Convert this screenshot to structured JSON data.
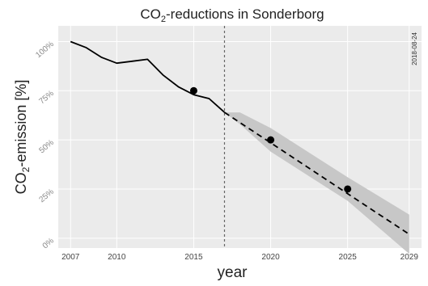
{
  "chart_data": {
    "type": "line",
    "title_prefix": "CO",
    "title_subscript": "2",
    "title_suffix": "-reductions in Sonderborg",
    "xlabel": "year",
    "ylabel_prefix": "CO",
    "ylabel_subscript": "2",
    "ylabel_suffix": "-emission [%]",
    "date_label": "2018-08-24",
    "xlim": [
      2006.2,
      2029.8
    ],
    "ylim": [
      -5,
      108
    ],
    "x_ticks": [
      {
        "value": 2007,
        "label": "2007"
      },
      {
        "value": 2010,
        "label": "2010"
      },
      {
        "value": 2015,
        "label": "2015"
      },
      {
        "value": 2020,
        "label": "2020"
      },
      {
        "value": 2025,
        "label": "2025"
      },
      {
        "value": 2029,
        "label": "2029"
      }
    ],
    "y_ticks": [
      {
        "value": 0,
        "label": "0%"
      },
      {
        "value": 25,
        "label": "25%"
      },
      {
        "value": 50,
        "label": "50%"
      },
      {
        "value": 75,
        "label": "75%"
      },
      {
        "value": 100,
        "label": "100%"
      }
    ],
    "grid": true,
    "vertical_line_x": 2017,
    "historical": {
      "x": [
        2007,
        2008,
        2009,
        2010,
        2011,
        2012,
        2013,
        2014,
        2015,
        2016,
        2017
      ],
      "y": [
        100,
        97,
        92,
        89,
        90,
        91,
        83,
        77,
        73,
        71,
        64
      ]
    },
    "projection": {
      "x": [
        2017,
        2029
      ],
      "y": [
        64,
        2
      ]
    },
    "confidence_band": {
      "x": [
        2017,
        2018,
        2020,
        2025,
        2029
      ],
      "upper": [
        64,
        64,
        56,
        31,
        12
      ],
      "lower": [
        64,
        58,
        44,
        19,
        -8
      ]
    },
    "targets": {
      "x": [
        2015,
        2020,
        2025
      ],
      "y": [
        75,
        50,
        25
      ]
    },
    "colors": {
      "panel_bg": "#ebebeb",
      "grid": "#ffffff",
      "line": "#000000",
      "band": "#c7c7c7",
      "vline": "#666666",
      "tick_text": "#8a8a8a"
    }
  }
}
